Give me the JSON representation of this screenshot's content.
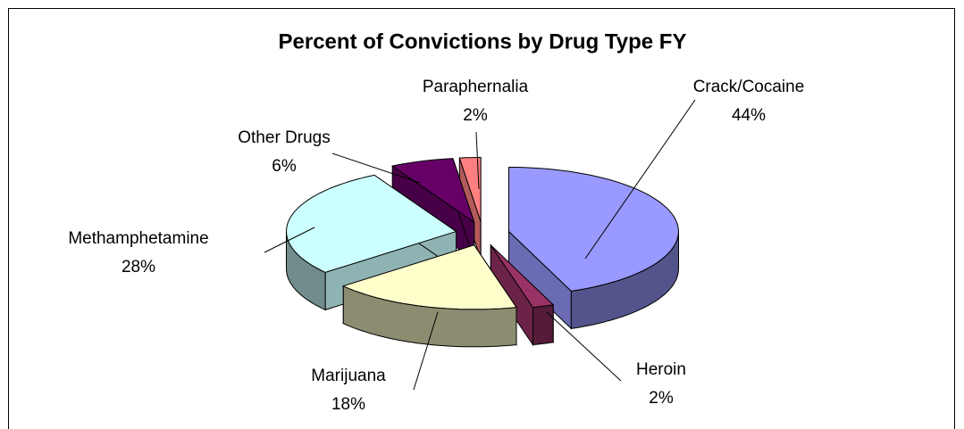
{
  "chart_data": {
    "type": "pie3d",
    "title": "Percent of Convictions by Drug Type FY",
    "categories": [
      "Crack/Cocaine",
      "Heroin",
      "Marijuana",
      "Methamphetamine",
      "Other Drugs",
      "Paraphernalia"
    ],
    "values": [
      44,
      2,
      18,
      28,
      6,
      2
    ],
    "value_labels": [
      "44%",
      "2%",
      "18%",
      "28%",
      "6%",
      "2%"
    ],
    "colors": [
      "#9999ff",
      "#993366",
      "#ffffcc",
      "#ccffff",
      "#660066",
      "#ff8080"
    ]
  }
}
